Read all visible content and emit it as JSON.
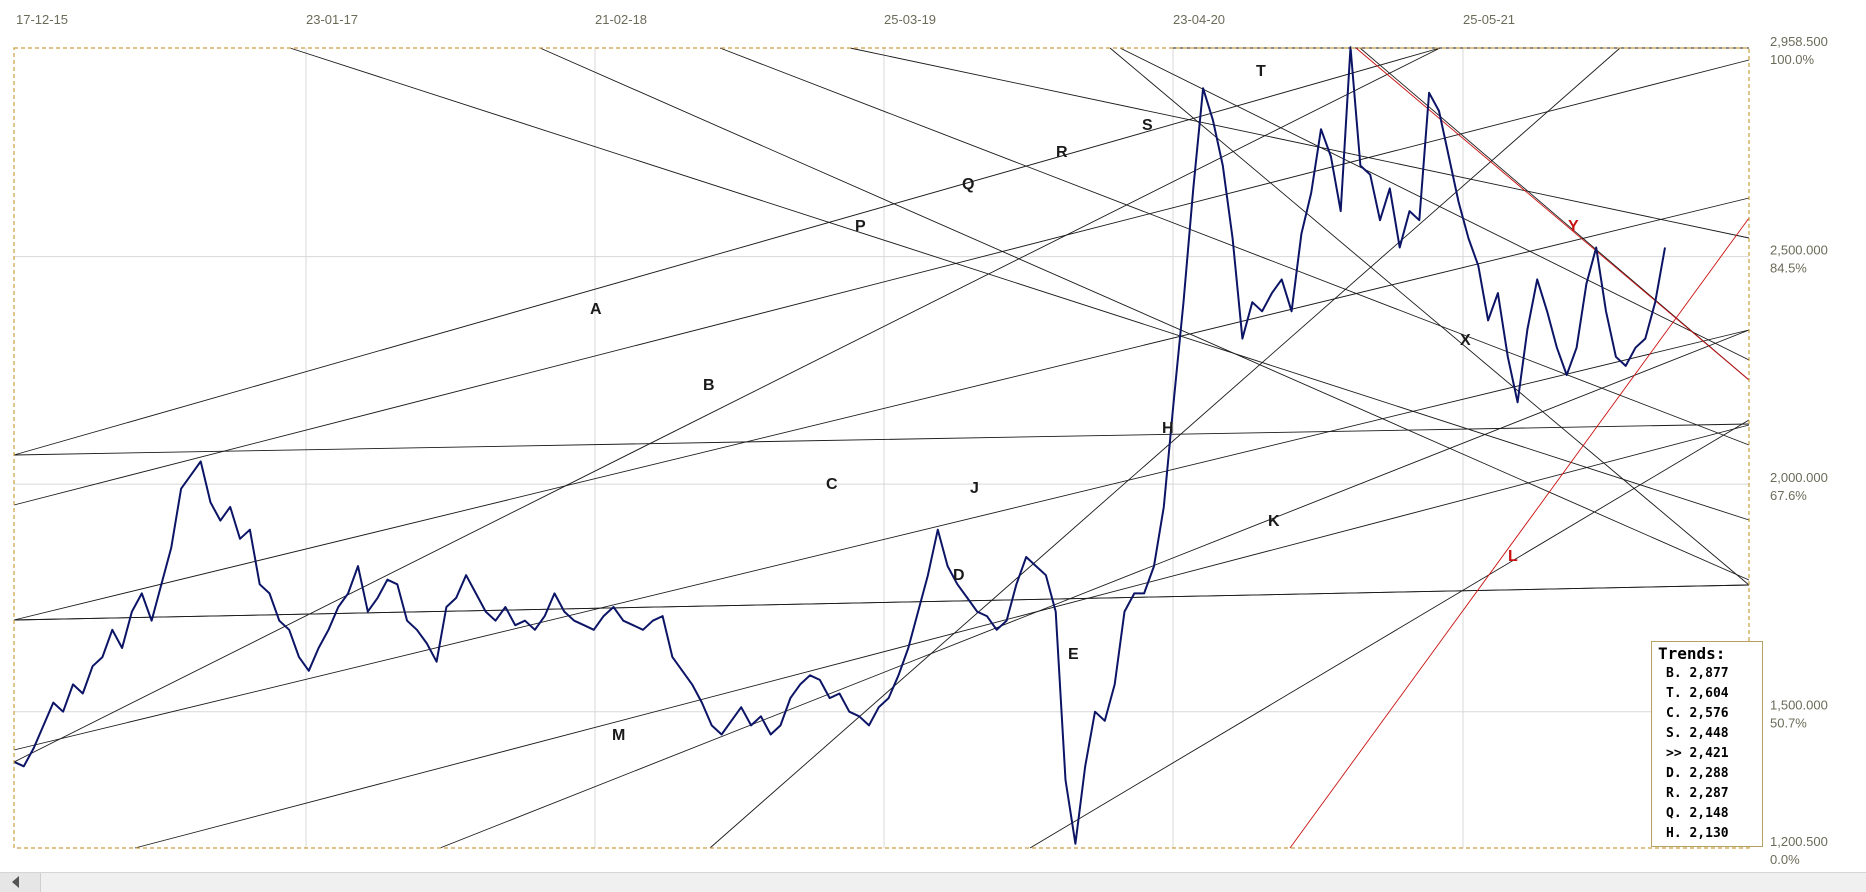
{
  "chart_data": {
    "type": "line",
    "x_tick_labels": [
      "17-12-15",
      "23-01-17",
      "21-02-18",
      "25-03-19",
      "23-04-20",
      "25-05-21"
    ],
    "y_tick_labels": [
      {
        "value": 2958.5,
        "label": "2,958.500",
        "pct": "100.0%"
      },
      {
        "value": 2500.0,
        "label": "2,500.000",
        "pct": "84.5%"
      },
      {
        "value": 2000.0,
        "label": "2,000.000",
        "pct": "67.6%"
      },
      {
        "value": 1500.0,
        "label": "1,500.000",
        "pct": "50.7%"
      },
      {
        "value": 1200.5,
        "label": "1,200.500",
        "pct": "0.0%"
      }
    ],
    "ylim": [
      1200.5,
      2958.5
    ],
    "grid": true,
    "series": [
      {
        "color": "#0c1466",
        "y": [
          1390,
          1380,
          1420,
          1470,
          1520,
          1500,
          1560,
          1540,
          1600,
          1620,
          1680,
          1640,
          1720,
          1760,
          1700,
          1780,
          1860,
          1990,
          2020,
          2050,
          1960,
          1920,
          1950,
          1880,
          1900,
          1780,
          1760,
          1700,
          1680,
          1620,
          1590,
          1640,
          1680,
          1730,
          1760,
          1820,
          1720,
          1750,
          1790,
          1780,
          1700,
          1680,
          1650,
          1610,
          1730,
          1750,
          1800,
          1760,
          1720,
          1700,
          1730,
          1690,
          1700,
          1680,
          1710,
          1760,
          1720,
          1700,
          1690,
          1680,
          1710,
          1730,
          1700,
          1690,
          1680,
          1700,
          1710,
          1620,
          1590,
          1560,
          1520,
          1470,
          1450,
          1480,
          1510,
          1470,
          1490,
          1450,
          1470,
          1530,
          1560,
          1580,
          1570,
          1530,
          1540,
          1500,
          1490,
          1470,
          1510,
          1530,
          1580,
          1640,
          1720,
          1800,
          1900,
          1820,
          1780,
          1750,
          1720,
          1710,
          1680,
          1700,
          1780,
          1840,
          1820,
          1800,
          1720,
          1350,
          1210,
          1380,
          1500,
          1480,
          1560,
          1720,
          1760,
          1760,
          1820,
          1950,
          2180,
          2400,
          2650,
          2870,
          2800,
          2700,
          2540,
          2320,
          2400,
          2380,
          2420,
          2450,
          2380,
          2550,
          2640,
          2780,
          2720,
          2600,
          2960,
          2700,
          2680,
          2580,
          2650,
          2520,
          2600,
          2580,
          2860,
          2820,
          2720,
          2620,
          2540,
          2480,
          2360,
          2420,
          2280,
          2180,
          2340,
          2450,
          2380,
          2300,
          2240,
          2300,
          2440,
          2520,
          2380,
          2280,
          2260,
          2300,
          2320,
          2400,
          2520
        ]
      }
    ],
    "trend_lines": [
      {
        "name": "A",
        "color": "#1a1a1a"
      },
      {
        "name": "B",
        "color": "#1a1a1a"
      },
      {
        "name": "C",
        "color": "#1a1a1a"
      },
      {
        "name": "D",
        "color": "#1a1a1a"
      },
      {
        "name": "E",
        "color": "#1a1a1a"
      },
      {
        "name": "H",
        "color": "#1a1a1a"
      },
      {
        "name": "J",
        "color": "#1a1a1a"
      },
      {
        "name": "K",
        "color": "#1a1a1a"
      },
      {
        "name": "M",
        "color": "#1a1a1a"
      },
      {
        "name": "P",
        "color": "#1a1a1a"
      },
      {
        "name": "Q",
        "color": "#1a1a1a"
      },
      {
        "name": "R",
        "color": "#1a1a1a"
      },
      {
        "name": "S",
        "color": "#1a1a1a"
      },
      {
        "name": "T",
        "color": "#1a1a1a"
      },
      {
        "name": "X",
        "color": "#1a1a1a"
      },
      {
        "name": "Y",
        "color": "#cc1111"
      },
      {
        "name": "L",
        "color": "#cc1111"
      }
    ],
    "legend": {
      "title": "Trends:",
      "entries": [
        {
          "key": "B.",
          "value": "2,877"
        },
        {
          "key": "T.",
          "value": "2,604"
        },
        {
          "key": "C.",
          "value": "2,576"
        },
        {
          "key": "S.",
          "value": "2,448"
        },
        {
          "key": ">>",
          "value": "2,421"
        },
        {
          "key": "D.",
          "value": "2,288"
        },
        {
          "key": "R.",
          "value": "2,287"
        },
        {
          "key": "Q.",
          "value": "2,148"
        },
        {
          "key": "H.",
          "value": "2,130"
        }
      ]
    }
  },
  "colors": {
    "price_line": "#0c1466",
    "frame": "#c9a040",
    "grid": "#d8d8d8",
    "trend": "#1a1a1a",
    "trend_red": "#cc1111"
  },
  "icons": {
    "scroll_left": "left-arrow-icon"
  }
}
